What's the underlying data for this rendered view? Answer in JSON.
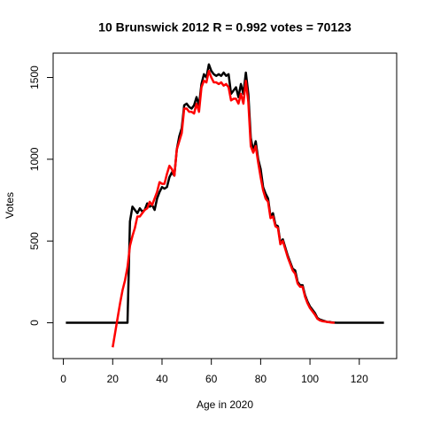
{
  "chart_data": {
    "type": "line",
    "title": "10 Brunswick 2012 R = 0.992 votes = 70123",
    "x_label": "Age in 2020",
    "y_label": "Votes",
    "xlim": [
      -4.16,
      135.16
    ],
    "ylim": [
      -219,
      1649
    ],
    "xticks": [
      0,
      20,
      40,
      60,
      80,
      100,
      120
    ],
    "yticks": [
      0,
      500,
      1000,
      1500
    ],
    "x": [
      1,
      2,
      3,
      4,
      5,
      6,
      7,
      8,
      9,
      10,
      11,
      12,
      13,
      14,
      15,
      16,
      17,
      18,
      19,
      20,
      21,
      22,
      23,
      24,
      25,
      26,
      27,
      28,
      29,
      30,
      31,
      32,
      33,
      34,
      35,
      36,
      37,
      38,
      39,
      40,
      41,
      42,
      43,
      44,
      45,
      46,
      47,
      48,
      49,
      50,
      51,
      52,
      53,
      54,
      55,
      56,
      57,
      58,
      59,
      60,
      61,
      62,
      63,
      64,
      65,
      66,
      67,
      68,
      69,
      70,
      71,
      72,
      73,
      74,
      75,
      76,
      77,
      78,
      79,
      80,
      81,
      82,
      83,
      84,
      85,
      86,
      87,
      88,
      89,
      90,
      91,
      92,
      93,
      94,
      95,
      96,
      97,
      98,
      99,
      100,
      101,
      102,
      103,
      104,
      105,
      106,
      107,
      108,
      109,
      110,
      111,
      112,
      113,
      114,
      115,
      116,
      117,
      118,
      119,
      120,
      121,
      122,
      123,
      124,
      125,
      126,
      127,
      128,
      129,
      130
    ],
    "series": [
      {
        "color": "#000000",
        "values": [
          0,
          0,
          0,
          0,
          0,
          0,
          0,
          0,
          0,
          0,
          0,
          0,
          0,
          0,
          0,
          0,
          0,
          0,
          0,
          0,
          0,
          0,
          0,
          0,
          0,
          0,
          620,
          710,
          690,
          670,
          700,
          680,
          690,
          730,
          710,
          720,
          690,
          760,
          800,
          830,
          820,
          830,
          890,
          920,
          900,
          1060,
          1140,
          1190,
          1330,
          1340,
          1320,
          1310,
          1330,
          1380,
          1330,
          1460,
          1520,
          1500,
          1580,
          1540,
          1520,
          1510,
          1520,
          1510,
          1530,
          1510,
          1520,
          1400,
          1420,
          1440,
          1380,
          1460,
          1400,
          1530,
          1400,
          1130,
          1050,
          1110,
          1000,
          940,
          830,
          790,
          760,
          650,
          670,
          600,
          590,
          490,
          510,
          460,
          410,
          370,
          330,
          320,
          250,
          230,
          230,
          170,
          130,
          100,
          80,
          60,
          30,
          20,
          15,
          10,
          5,
          5,
          2,
          1,
          0,
          0,
          0,
          0,
          0,
          0,
          0,
          0,
          0,
          0,
          0,
          0,
          0,
          0,
          0,
          0,
          0,
          0,
          0,
          0
        ]
      },
      {
        "color": "#ff0000",
        "values": [
          null,
          null,
          null,
          null,
          null,
          null,
          null,
          null,
          null,
          null,
          null,
          null,
          null,
          null,
          null,
          null,
          null,
          null,
          null,
          -150,
          -60,
          30,
          120,
          200,
          260,
          340,
          470,
          530,
          580,
          650,
          650,
          670,
          690,
          700,
          740,
          720,
          760,
          800,
          860,
          850,
          850,
          910,
          960,
          940,
          900,
          1060,
          1110,
          1160,
          1310,
          1310,
          1290,
          1290,
          1280,
          1340,
          1290,
          1440,
          1480,
          1470,
          1540,
          1500,
          1470,
          1470,
          1460,
          1470,
          1450,
          1460,
          1440,
          1360,
          1370,
          1370,
          1340,
          1400,
          1340,
          1480,
          1350,
          1080,
          1040,
          1080,
          980,
          890,
          810,
          760,
          740,
          640,
          650,
          590,
          580,
          480,
          500,
          450,
          400,
          360,
          320,
          300,
          240,
          220,
          220,
          160,
          120,
          90,
          70,
          50,
          25,
          15,
          10,
          8,
          5,
          3,
          1,
          0,
          null,
          null,
          null,
          null,
          null,
          null,
          null,
          null,
          null,
          null,
          null,
          null,
          null,
          null,
          null,
          null,
          null,
          null,
          null,
          null
        ]
      }
    ]
  }
}
